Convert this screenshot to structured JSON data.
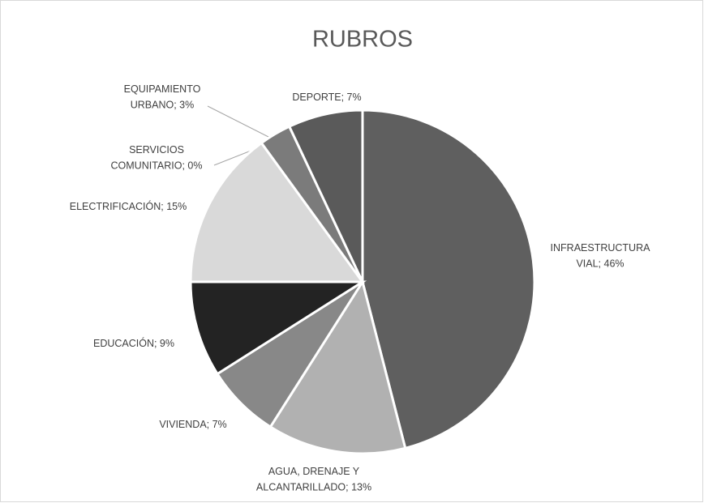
{
  "chart_data": {
    "type": "pie",
    "title": "RUBROS",
    "values": [
      46,
      13,
      7,
      9,
      15,
      0,
      3,
      7
    ],
    "value_labels": [
      "INFRAESTRUCTURA\nVIAL; 46%",
      "AGUA, DRENAJE Y\nALCANTARILLADO; 13%",
      "VIVIENDA; 7%",
      "EDUCACIÓN; 9%",
      "ELECTRIFICACIÓN; 15%",
      "SERVICIOS\nCOMUNITARIO; 0%",
      "EQUIPAMIENTO\nURBANO; 3%",
      "DEPORTE; 7%"
    ],
    "colors": [
      "#5f5f5f",
      "#b1b1b1",
      "#888888",
      "#232323",
      "#d9d9d9",
      "#f2f2f2",
      "#7b7b7b",
      "#5a5a5a"
    ]
  }
}
